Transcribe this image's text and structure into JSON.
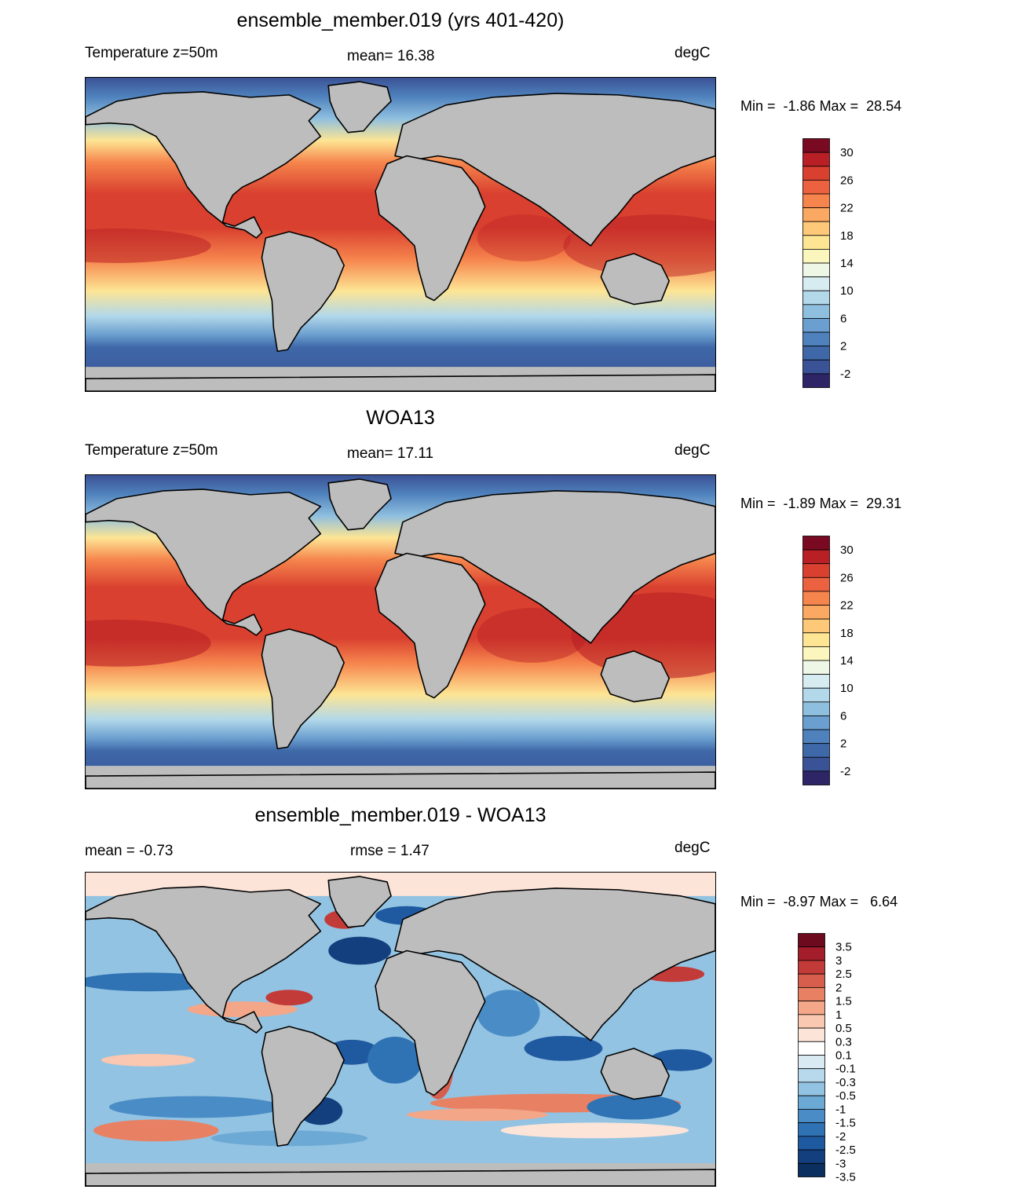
{
  "panels": [
    {
      "title": "ensemble_member.019 (yrs 401-420)",
      "left_label": "Temperature z=50m",
      "center_label": "mean=  16.38",
      "right_label": "degC",
      "min_label": "Min =  -1.86",
      "max_label": "Max =  28.54",
      "colorbar": {
        "colors": [
          "#2d2566",
          "#3a5296",
          "#3f68a8",
          "#4f82bd",
          "#6b9fcf",
          "#8fbfdf",
          "#b2d8ea",
          "#d6ecf1",
          "#eef7e6",
          "#fbf6bd",
          "#fde594",
          "#fdc978",
          "#fba962",
          "#f6854d",
          "#ec6140",
          "#d9402f",
          "#b92025",
          "#7a0a22"
        ],
        "ticks": [
          "30",
          "26",
          "22",
          "18",
          "14",
          "10",
          "6",
          "2",
          "-2"
        ]
      }
    },
    {
      "title": "WOA13",
      "left_label": "Temperature z=50m",
      "center_label": "mean=  17.11",
      "right_label": "degC",
      "min_label": "Min =  -1.89",
      "max_label": "Max =  29.31",
      "colorbar": {
        "colors": [
          "#2d2566",
          "#3a5296",
          "#3f68a8",
          "#4f82bd",
          "#6b9fcf",
          "#8fbfdf",
          "#b2d8ea",
          "#d6ecf1",
          "#eef7e6",
          "#fbf6bd",
          "#fde594",
          "#fdc978",
          "#fba962",
          "#f6854d",
          "#ec6140",
          "#d9402f",
          "#b92025",
          "#7a0a22"
        ],
        "ticks": [
          "30",
          "26",
          "22",
          "18",
          "14",
          "10",
          "6",
          "2",
          "-2"
        ]
      }
    },
    {
      "title": "ensemble_member.019 - WOA13",
      "left_label": "mean =  -0.73",
      "center_label": "rmse =   1.47",
      "right_label": "degC",
      "min_label": "Min =  -8.97",
      "max_label": "Max =   6.64",
      "colorbar": {
        "colors": [
          "#0b2f5e",
          "#143f7f",
          "#1f5aa1",
          "#2f73b5",
          "#4a8dc6",
          "#6da9d5",
          "#93c3e2",
          "#b8d9ec",
          "#d9eaf3",
          "#ffffff",
          "#fde4d8",
          "#fac7b0",
          "#f4a688",
          "#e88164",
          "#d75e4c",
          "#c23b38",
          "#a41d2b",
          "#6e0a1e"
        ],
        "ticks": [
          "3.5",
          "3",
          "2.5",
          "2",
          "1.5",
          "1",
          "0.5",
          "0.3",
          "0.1",
          "-0.1",
          "-0.3",
          "-0.5",
          "-1",
          "-1.5",
          "-2",
          "-2.5",
          "-3",
          "-3.5"
        ]
      }
    }
  ]
}
